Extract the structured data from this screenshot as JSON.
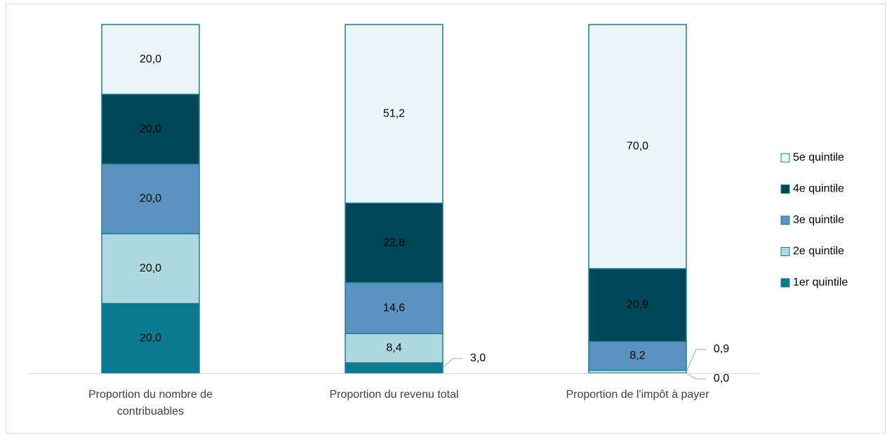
{
  "chart_data": {
    "type": "stacked_bar",
    "categories": [
      "Proportion du  nombre de contribuables",
      "Proportion du revenu total",
      "Proportion de l'impôt à payer"
    ],
    "series": [
      {
        "name": "1er quintile",
        "color": "#0b7a91",
        "values": [
          20.0,
          3.0,
          0.0
        ],
        "value_labels": [
          "20,0",
          "3,0",
          "0,0"
        ]
      },
      {
        "name": "2e quintile",
        "color": "#acd8de",
        "values": [
          20.0,
          8.4,
          0.9
        ],
        "value_labels": [
          "20,0",
          "8,4",
          "0,9"
        ]
      },
      {
        "name": "3e quintile",
        "color": "#5894bf",
        "values": [
          20.0,
          14.6,
          8.2
        ],
        "value_labels": [
          "20,0",
          "14,6",
          "8,2"
        ]
      },
      {
        "name": "4e quintile",
        "color": "#004659",
        "values": [
          20.0,
          22.8,
          20.9
        ],
        "value_labels": [
          "20,0",
          "22,8",
          "20,9"
        ]
      },
      {
        "name": "5e quintile",
        "color": "#eaf5f7",
        "values": [
          20.0,
          51.2,
          70.0
        ],
        "value_labels": [
          "20,0",
          "51,2",
          "70,0"
        ]
      }
    ],
    "ylim": [
      0,
      100
    ],
    "legend": "right"
  }
}
